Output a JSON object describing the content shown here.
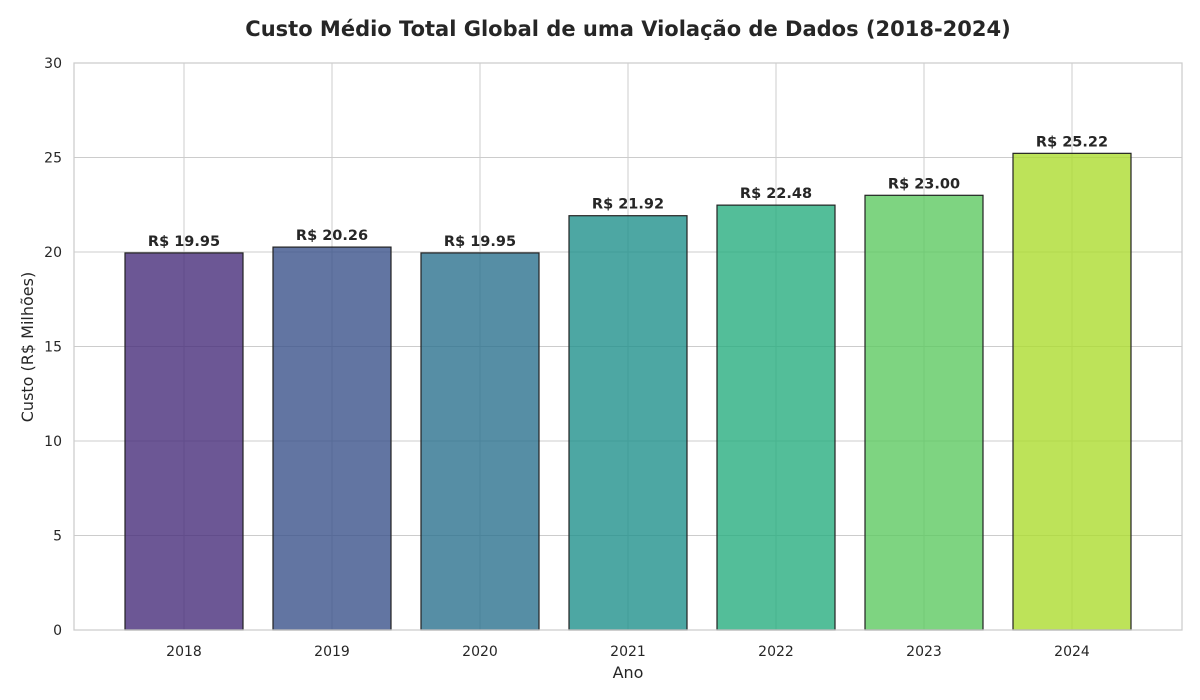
{
  "chart_data": {
    "type": "bar",
    "title": "Custo Médio Total Global de uma Violação de Dados (2018-2024)",
    "xlabel": "Ano",
    "ylabel": "Custo (R$ Milhões)",
    "categories": [
      "2018",
      "2019",
      "2020",
      "2021",
      "2022",
      "2023",
      "2024"
    ],
    "values": [
      19.95,
      20.26,
      19.95,
      21.92,
      22.48,
      23.0,
      25.22
    ],
    "data_labels": [
      "R$ 19.95",
      "R$ 20.26",
      "R$ 19.95",
      "R$ 21.92",
      "R$ 22.48",
      "R$ 23.00",
      "R$ 25.22"
    ],
    "ylim": [
      0,
      30
    ],
    "yticks": [
      0,
      5,
      10,
      15,
      20,
      25,
      30
    ],
    "grid": true,
    "colors": [
      "#472d7b",
      "#3b528b",
      "#2c728e",
      "#21918c",
      "#28ae80",
      "#5ec962",
      "#addc30"
    ],
    "bar_alpha": 0.8,
    "bar_edge_color": "#222222"
  }
}
